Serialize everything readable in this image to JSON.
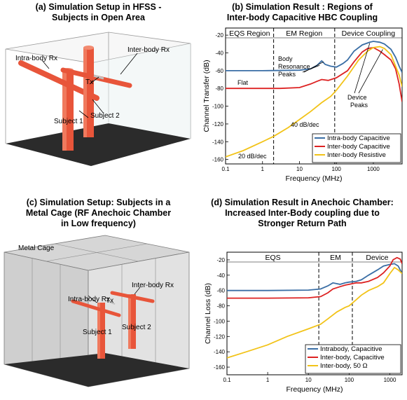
{
  "panels": {
    "a": {
      "title_line1": "(a) Simulation Setup in HFSS -",
      "title_line2": "Subjects in Open Area",
      "labels": {
        "intra_rx": "Intra-body Rx",
        "inter_rx": "Inter-body Rx",
        "tx": "Tx",
        "subject1": "Subject 1",
        "subject2": "Subject 2"
      }
    },
    "b": {
      "title_line1": "(b) Simulation Result : Regions of",
      "title_line2": "Inter-body Capacitive HBC Coupling"
    },
    "c": {
      "title_line1": "(c) Simulation Setup: Subjects in a",
      "title_line2": "Metal Cage (RF Anechoic Chamber",
      "title_line3": "in Low frequency)",
      "labels": {
        "cage": "Metal Cage",
        "intra_rx": "Intra-body Rx",
        "inter_rx": "Inter-body Rx",
        "tx": "Tx",
        "subject1": "Subject 1",
        "subject2": "Subject 2"
      }
    },
    "d": {
      "title_line1": "(d) Simulation Result in Anechoic Chamber:",
      "title_line2": "Increased Inter-Body coupling due to",
      "title_line3": "Stronger Return Path"
    }
  },
  "chart_data": [
    {
      "type": "line",
      "panel": "b",
      "xlabel": "Frequency (MHz)",
      "ylabel": "Channel Transfer (dB)",
      "xscale": "log",
      "xlim": [
        0.1,
        6000
      ],
      "ylim": [
        -165,
        -12
      ],
      "xticks": [
        0.1,
        1,
        10,
        100,
        1000
      ],
      "xtick_labels": [
        "0.1",
        "1",
        "10",
        "100",
        "1000"
      ],
      "yticks": [
        -160,
        -140,
        -120,
        -100,
        -80,
        -60,
        -40,
        -20
      ],
      "ytick_labels": [
        "-160",
        "-140",
        "-120",
        "-100",
        "-80",
        "-60",
        "-40",
        "-20"
      ],
      "regions": [
        {
          "label": "EQS Region",
          "x_from": 0.1,
          "x_to": 2
        },
        {
          "label": "EM Region",
          "x_from": 2,
          "x_to": 90
        },
        {
          "label": "Device Coupling",
          "x_from": 90,
          "x_to": 6000
        }
      ],
      "region_bounds": [
        2,
        90
      ],
      "annotations": {
        "flat": "Flat",
        "body1": "Body",
        "body2": "Resonance",
        "body3": "Peaks",
        "device1": "Device",
        "device2": "Peaks",
        "slope40": "40 dB/dec",
        "slope20": "20 dB/dec"
      },
      "legend_position": "bottom-right",
      "series": [
        {
          "name": "Intra-body Capacitive",
          "color": "#3a6ea5",
          "x": [
            0.1,
            1,
            10,
            20,
            30,
            40,
            50,
            70,
            100,
            150,
            200,
            300,
            500,
            800,
            1000,
            1500,
            2000,
            3000,
            4000,
            5000,
            6000
          ],
          "y": [
            -60,
            -60,
            -59.5,
            -58,
            -54,
            -49,
            -53,
            -55,
            -56,
            -52,
            -48,
            -38,
            -31,
            -28,
            -27,
            -28,
            -30,
            -36,
            -45,
            -55,
            -62
          ]
        },
        {
          "name": "Inter-body Capacitive",
          "color": "#dd2222",
          "x": [
            0.1,
            1,
            3,
            10,
            20,
            30,
            40,
            60,
            100,
            200,
            300,
            500,
            700,
            1000,
            1500,
            2000,
            3000,
            4000,
            5000,
            6000
          ],
          "y": [
            -80,
            -80,
            -80,
            -79,
            -75,
            -72,
            -70,
            -71,
            -68,
            -60,
            -50,
            -39,
            -35,
            -34,
            -38,
            -42,
            -48,
            -58,
            -75,
            -95
          ]
        },
        {
          "name": "Inter-body Resistive",
          "color": "#f2c318",
          "x": [
            0.1,
            0.3,
            1,
            2,
            5,
            10,
            20,
            40,
            70,
            100,
            200,
            400,
            700,
            1000,
            1500,
            2000,
            3000,
            4000,
            5000,
            6000
          ],
          "y": [
            -157,
            -150,
            -140,
            -134,
            -124,
            -115,
            -106,
            -96,
            -89,
            -82,
            -66,
            -48,
            -38,
            -34,
            -33,
            -35,
            -42,
            -55,
            -65,
            -78
          ]
        }
      ]
    },
    {
      "type": "line",
      "panel": "d",
      "xlabel": "Frequency (MHz)",
      "ylabel": "Channel Loss (dB)",
      "xscale": "log",
      "xlim": [
        0.1,
        2000
      ],
      "ylim": [
        -170,
        -10
      ],
      "xticks": [
        0.1,
        1,
        10,
        100,
        1000
      ],
      "xtick_labels": [
        "0.1",
        "1",
        "10",
        "100",
        "1000"
      ],
      "yticks": [
        -160,
        -140,
        -120,
        -100,
        -80,
        -60,
        -40,
        -20
      ],
      "ytick_labels": [
        "-160",
        "-140",
        "-120",
        "-100",
        "-80",
        "-60",
        "-40",
        "-20"
      ],
      "regions": [
        {
          "label": "EQS",
          "x_from": 0.1,
          "x_to": 18
        },
        {
          "label": "EM",
          "x_from": 18,
          "x_to": 120
        },
        {
          "label": "Device",
          "x_from": 120,
          "x_to": 2000
        }
      ],
      "region_bounds": [
        18,
        120
      ],
      "legend_position": "bottom-right",
      "series": [
        {
          "name": "Intrabody, Capacitive",
          "color": "#3a6ea5",
          "x": [
            0.1,
            1,
            10,
            20,
            30,
            40,
            60,
            80,
            100,
            150,
            200,
            300,
            500,
            700,
            1000,
            1300,
            1600,
            2000
          ],
          "y": [
            -60,
            -60,
            -59.5,
            -58,
            -54,
            -50,
            -52,
            -50,
            -49,
            -48,
            -46,
            -40,
            -33,
            -28,
            -26,
            -25,
            -28,
            -38
          ]
        },
        {
          "name": "Inter-body, Capacitive",
          "color": "#dd2222",
          "x": [
            0.1,
            1,
            10,
            20,
            30,
            40,
            60,
            80,
            100,
            150,
            200,
            300,
            500,
            700,
            1000,
            1200,
            1500,
            1800,
            2000
          ],
          "y": [
            -70,
            -70,
            -69.5,
            -68,
            -63,
            -58,
            -55,
            -53,
            -52,
            -50,
            -50,
            -48,
            -43,
            -37,
            -28,
            -20,
            -17,
            -19,
            -25
          ]
        },
        {
          "name": "Inter-body, 50 Ω",
          "color": "#f2c318",
          "x": [
            0.1,
            0.3,
            1,
            3,
            10,
            20,
            30,
            50,
            80,
            100,
            150,
            200,
            300,
            500,
            700,
            1000,
            1300,
            1600,
            2000
          ],
          "y": [
            -148,
            -140,
            -131,
            -120,
            -110,
            -104,
            -97,
            -88,
            -82,
            -80,
            -72,
            -66,
            -60,
            -55,
            -50,
            -38,
            -30,
            -33,
            -38
          ]
        }
      ]
    }
  ]
}
